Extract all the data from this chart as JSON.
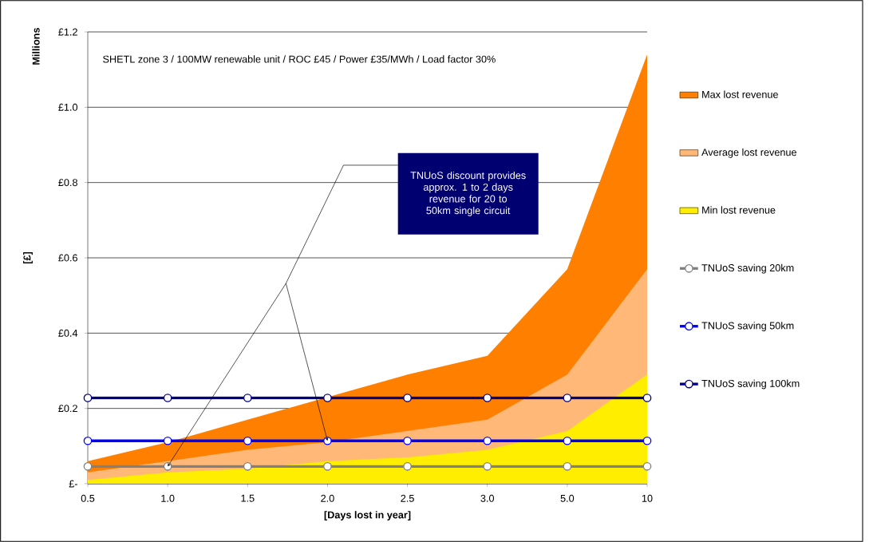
{
  "chart_data": {
    "type": "area",
    "title": "SHETL zone 3 / 100MW renewable unit / ROC £45 / Power £35/MWh / Load factor 30%",
    "xlabel": "[Days lost in year]",
    "ylabel": "[£]",
    "annotations": [
      "Millions",
      "TNUoS discount provides approx. 1 to 2 days revenue for 20 to 50km single circuit"
    ],
    "categories": [
      "0.5",
      "1.0",
      "1.5",
      "2.0",
      "2.5",
      "3.0",
      "5.0",
      "10"
    ],
    "series": [
      {
        "name": "Max lost revenue",
        "color": "#ff8000",
        "values": [
          0.06,
          0.11,
          0.17,
          0.23,
          0.29,
          0.34,
          0.57,
          1.14
        ]
      },
      {
        "name": "Average lost revenue",
        "color": "#ffb878",
        "values": [
          0.03,
          0.06,
          0.09,
          0.11,
          0.14,
          0.17,
          0.29,
          0.57
        ]
      },
      {
        "name": "Min lost revenue",
        "color": "#ffee00",
        "values": [
          0.01,
          0.03,
          0.04,
          0.06,
          0.07,
          0.09,
          0.14,
          0.29
        ]
      },
      {
        "name": "TNUoS saving 20km",
        "type": "line",
        "marker": "circle",
        "color": "#808080",
        "values": [
          0.046,
          0.046,
          0.046,
          0.046,
          0.046,
          0.046,
          0.046,
          0.046
        ]
      },
      {
        "name": "TNUoS saving 50km",
        "type": "line",
        "marker": "circle",
        "color": "#0000ff",
        "values": [
          0.114,
          0.114,
          0.114,
          0.114,
          0.114,
          0.114,
          0.114,
          0.114
        ]
      },
      {
        "name": "TNUoS saving 100km",
        "type": "line",
        "marker": "circle",
        "color": "#000080",
        "values": [
          0.228,
          0.228,
          0.228,
          0.228,
          0.228,
          0.228,
          0.228,
          0.228
        ]
      }
    ],
    "ylim": [
      0,
      1.2
    ],
    "yticks": [
      {
        "value": 0,
        "label": "£-"
      },
      {
        "value": 0.2,
        "label": "£0.2"
      },
      {
        "value": 0.4,
        "label": "£0.4"
      },
      {
        "value": 0.6,
        "label": "£0.6"
      },
      {
        "value": 0.8,
        "label": "£0.8"
      },
      {
        "value": 1.0,
        "label": "£1.0"
      },
      {
        "value": 1.2,
        "label": "£1.2"
      }
    ],
    "grid": "y",
    "legend": "right"
  }
}
